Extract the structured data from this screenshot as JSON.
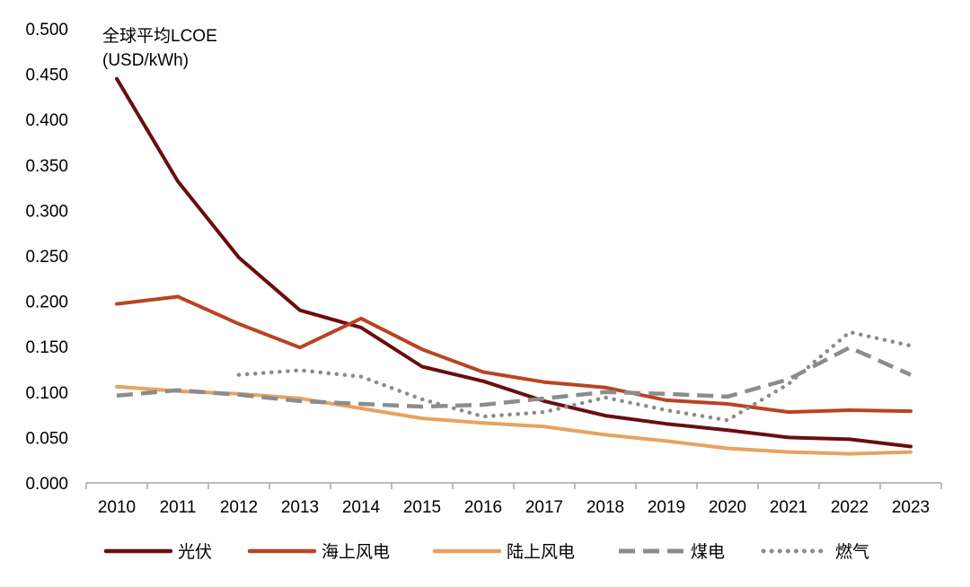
{
  "chart_data": {
    "type": "line",
    "title": "",
    "ylabel": "全球平均LCOE",
    "yunit": "(USD/kWh)",
    "xlabel": "",
    "ylim": [
      0,
      0.5
    ],
    "yticks": [
      "0.000",
      "0.050",
      "0.100",
      "0.150",
      "0.200",
      "0.250",
      "0.300",
      "0.350",
      "0.400",
      "0.450",
      "0.500"
    ],
    "categories": [
      "2010",
      "2011",
      "2012",
      "2013",
      "2014",
      "2015",
      "2016",
      "2017",
      "2018",
      "2019",
      "2020",
      "2021",
      "2022",
      "2023"
    ],
    "grid": false,
    "legend_position": "bottom",
    "series": [
      {
        "name": "光伏",
        "color": "#6b0d0d",
        "style": "solid",
        "values": [
          0.445,
          0.332,
          0.248,
          0.19,
          0.171,
          0.128,
          0.112,
          0.09,
          0.074,
          0.065,
          0.058,
          0.05,
          0.048,
          0.04
        ]
      },
      {
        "name": "海上风电",
        "color": "#b84424",
        "style": "solid",
        "values": [
          0.197,
          0.205,
          0.175,
          0.149,
          0.181,
          0.147,
          0.122,
          0.111,
          0.105,
          0.091,
          0.087,
          0.078,
          0.08,
          0.079
        ]
      },
      {
        "name": "陆上风电",
        "color": "#e8a262",
        "style": "solid",
        "values": [
          0.106,
          0.101,
          0.098,
          0.093,
          0.082,
          0.071,
          0.066,
          0.062,
          0.053,
          0.046,
          0.038,
          0.034,
          0.032,
          0.034
        ]
      },
      {
        "name": "煤电",
        "color": "#8c8c8c",
        "style": "dashed",
        "values": [
          0.096,
          0.102,
          0.097,
          0.09,
          0.087,
          0.084,
          0.086,
          0.093,
          0.1,
          0.098,
          0.095,
          0.114,
          0.149,
          0.119
        ]
      },
      {
        "name": "燃气",
        "color": "#8c8c8c",
        "style": "dotted",
        "values": [
          null,
          null,
          0.119,
          0.124,
          0.117,
          0.092,
          0.073,
          0.078,
          0.094,
          0.08,
          0.069,
          0.109,
          0.166,
          0.151
        ]
      }
    ]
  }
}
